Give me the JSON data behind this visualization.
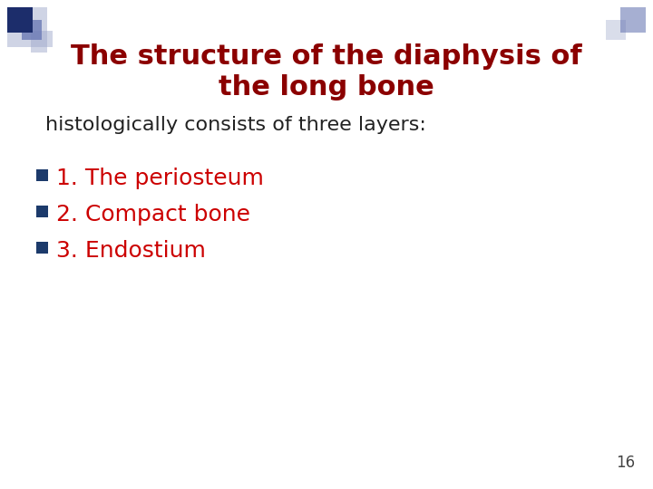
{
  "title_line1": "The structure of the diaphysis of",
  "title_line2": "the long bone",
  "subtitle": "histologically consists of three layers:",
  "bullet_items": [
    "1. The periosteum",
    "2. Compact bone",
    "3. Endostium"
  ],
  "title_color": "#8B0000",
  "subtitle_color": "#222222",
  "bullet_color": "#CC0000",
  "bullet_square_color": "#1C3A6B",
  "page_number": "16",
  "background_color": "#FFFFFF",
  "border_dark_blue": "#1C2D6B",
  "border_mid_blue": "#6B7AB5",
  "border_light_blue": "#A0AACC",
  "title_fontsize": 22,
  "subtitle_fontsize": 16,
  "bullet_fontsize": 18,
  "page_number_fontsize": 12
}
